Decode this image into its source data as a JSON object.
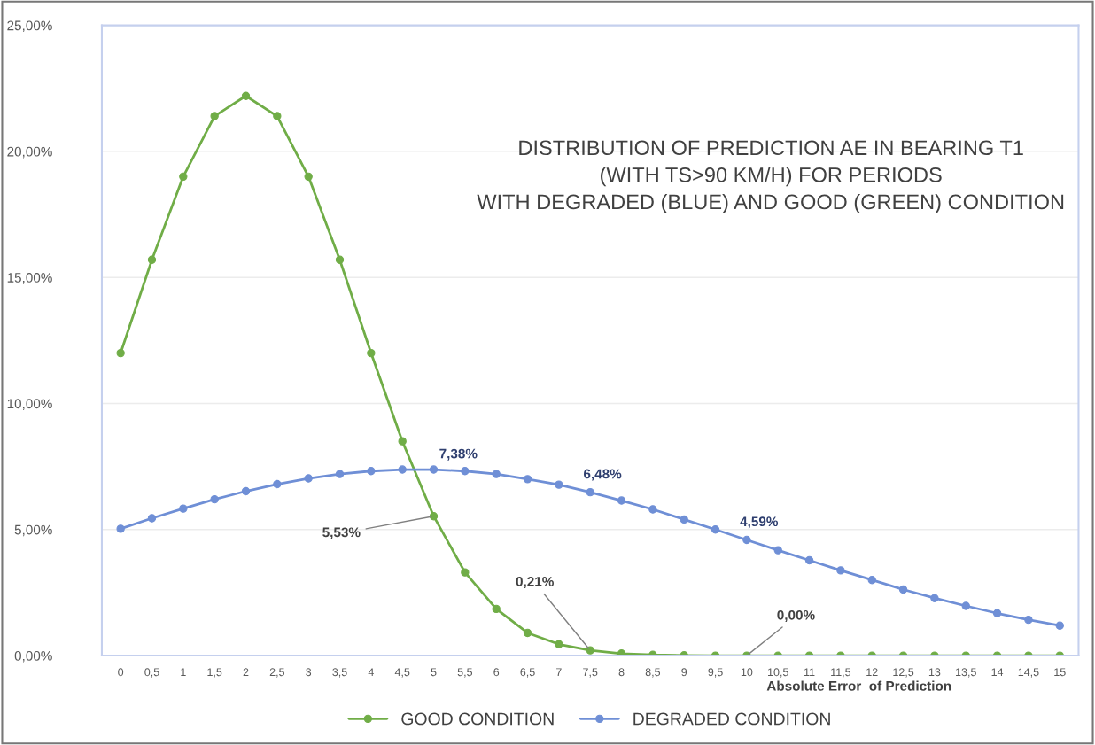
{
  "chart_data": {
    "type": "line",
    "title": "DISTRIBUTION OF PREDICTION AE IN BEARING T1\n(WITH TS>90 KM/H) FOR PERIODS\nWITH DEGRADED (BLUE) AND GOOD (GREEN) CONDITION",
    "xlabel": "Absolute Error  of Prediction",
    "categories": [
      "0",
      "0,5",
      "1",
      "1,5",
      "2",
      "2,5",
      "3",
      "3,5",
      "4",
      "4,5",
      "5",
      "5,5",
      "6",
      "6,5",
      "7",
      "7,5",
      "8",
      "8,5",
      "9",
      "9,5",
      "10",
      "10,5",
      "11",
      "11,5",
      "12",
      "12,5",
      "13",
      "13,5",
      "14",
      "14,5",
      "15"
    ],
    "series": [
      {
        "name": "GOOD CONDITION",
        "color": "#70ad47",
        "values": [
          12.0,
          15.7,
          19.0,
          21.4,
          22.2,
          21.4,
          19.0,
          15.7,
          12.0,
          8.5,
          5.53,
          3.3,
          1.85,
          0.9,
          0.45,
          0.21,
          0.08,
          0.03,
          0.01,
          0,
          0,
          0,
          0,
          0,
          0,
          0,
          0,
          0,
          0,
          0,
          0
        ],
        "value_labels": [
          null,
          null,
          null,
          null,
          null,
          null,
          null,
          null,
          null,
          null,
          "5,53%",
          null,
          null,
          null,
          null,
          "0,21%",
          null,
          null,
          null,
          null,
          "0,00%",
          null,
          null,
          null,
          null,
          null,
          null,
          null,
          null,
          null,
          null
        ]
      },
      {
        "name": "DEGRADED CONDITION",
        "color": "#6f8fd6",
        "values": [
          5.03,
          5.45,
          5.83,
          6.2,
          6.52,
          6.8,
          7.03,
          7.2,
          7.32,
          7.38,
          7.38,
          7.32,
          7.2,
          7.0,
          6.78,
          6.48,
          6.15,
          5.8,
          5.4,
          5.0,
          4.59,
          4.18,
          3.78,
          3.38,
          3.0,
          2.62,
          2.28,
          1.97,
          1.68,
          1.42,
          1.19
        ],
        "value_labels": [
          null,
          null,
          null,
          null,
          null,
          null,
          null,
          null,
          null,
          null,
          "7,38%",
          null,
          null,
          null,
          null,
          "6,48%",
          null,
          null,
          null,
          null,
          "4,59%",
          null,
          null,
          null,
          null,
          null,
          null,
          null,
          null,
          null,
          null
        ]
      }
    ],
    "ylim": [
      0,
      25
    ],
    "yticks": [
      {
        "value": 0,
        "label": "0,00%"
      },
      {
        "value": 5,
        "label": "5,00%"
      },
      {
        "value": 10,
        "label": "10,00%"
      },
      {
        "value": 15,
        "label": "15,00%"
      },
      {
        "value": 20,
        "label": "20,00%"
      },
      {
        "value": 25,
        "label": "25,00%"
      }
    ],
    "grid": "y",
    "legend": "bottom",
    "marker": "circle",
    "line_style": "solid"
  }
}
